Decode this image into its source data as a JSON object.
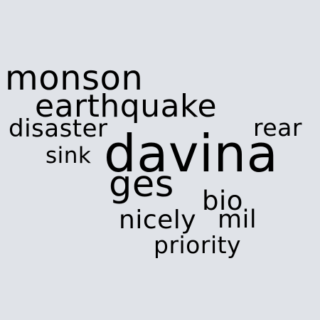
{
  "background_color": "#e0e3e8",
  "text_color": "#000000",
  "words": {
    "monson": "monson",
    "earthquake": "earthquake",
    "disaster": "disaster",
    "rear": "rear",
    "sink": "sink",
    "davina": "davina",
    "ges": "ges",
    "bio": "bio",
    "nicely": "nicely",
    "mil": "mil",
    "priority": "priority"
  }
}
